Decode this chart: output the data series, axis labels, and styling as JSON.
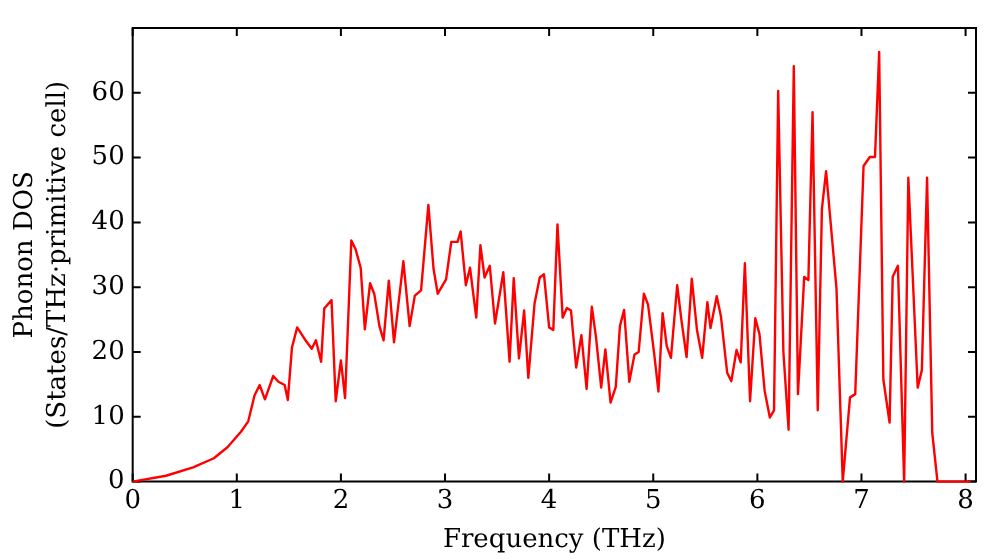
{
  "chart_data": {
    "type": "line",
    "xlabel": "Frequency (THz)",
    "ylabel": "Phonon DOS\n(States/THz·primitive cell)",
    "xlim": [
      0,
      8.1
    ],
    "ylim": [
      0,
      70
    ],
    "xticks": [
      0,
      1,
      2,
      3,
      4,
      5,
      6,
      7,
      8
    ],
    "yticks": [
      0,
      10,
      20,
      30,
      40,
      50,
      60
    ],
    "grid": false,
    "legend": false,
    "marker": "none",
    "line_style": "solid",
    "series": [
      {
        "color": "#ff0000",
        "x": [
          0,
          0.32,
          0.58,
          0.78,
          0.91,
          1.04,
          1.11,
          1.17,
          1.22,
          1.27,
          1.35,
          1.4,
          1.46,
          1.49,
          1.53,
          1.58,
          1.66,
          1.72,
          1.76,
          1.81,
          1.84,
          1.91,
          1.95,
          2.0,
          2.04,
          2.1,
          2.14,
          2.19,
          2.23,
          2.28,
          2.32,
          2.37,
          2.41,
          2.46,
          2.51,
          2.6,
          2.66,
          2.71,
          2.77,
          2.84,
          2.89,
          2.93,
          3.01,
          3.06,
          3.12,
          3.15,
          3.2,
          3.24,
          3.3,
          3.34,
          3.38,
          3.43,
          3.48,
          3.56,
          3.62,
          3.66,
          3.71,
          3.76,
          3.8,
          3.86,
          3.91,
          3.95,
          4.0,
          4.04,
          4.08,
          4.13,
          4.17,
          4.21,
          4.26,
          4.31,
          4.36,
          4.41,
          4.45,
          4.5,
          4.54,
          4.59,
          4.64,
          4.68,
          4.72,
          4.77,
          4.82,
          4.86,
          4.91,
          4.95,
          5.01,
          5.05,
          5.09,
          5.13,
          5.17,
          5.23,
          5.27,
          5.32,
          5.37,
          5.42,
          5.47,
          5.52,
          5.55,
          5.61,
          5.65,
          5.71,
          5.75,
          5.8,
          5.84,
          5.88,
          5.93,
          5.98,
          6.02,
          6.07,
          6.12,
          6.16,
          6.2,
          6.25,
          6.3,
          6.35,
          6.39,
          6.45,
          6.49,
          6.53,
          6.58,
          6.62,
          6.66,
          6.76,
          6.82,
          6.89,
          6.94,
          7.02,
          7.08,
          7.13,
          7.17,
          7.21,
          7.27,
          7.3,
          7.35,
          7.41,
          7.45,
          7.54,
          7.58,
          7.63,
          7.68,
          7.73,
          8.05
        ],
        "values": [
          0,
          0.9,
          2.2,
          3.6,
          5.3,
          7.7,
          9.3,
          13.3,
          14.9,
          12.7,
          16.3,
          15.4,
          14.9,
          12.6,
          20.7,
          23.8,
          21.8,
          20.5,
          21.8,
          18.5,
          26.7,
          28,
          12.4,
          18.7,
          12.9,
          37.2,
          35.9,
          33,
          23.5,
          30.6,
          29,
          24,
          21.8,
          31,
          21.5,
          34,
          24,
          28.7,
          29.5,
          42.7,
          32.8,
          29,
          31.2,
          37,
          37,
          38.6,
          30.3,
          33,
          25.3,
          36.5,
          31.5,
          33.3,
          24.4,
          32.3,
          18.5,
          31.4,
          19,
          26.4,
          16,
          27.5,
          31.5,
          32,
          23.8,
          23.4,
          39.7,
          25.3,
          26.8,
          26.4,
          17.6,
          22.6,
          14.3,
          27,
          22.3,
          14.5,
          20.4,
          12.2,
          14.6,
          24,
          26.5,
          15.4,
          19.6,
          20,
          29,
          27.3,
          19.6,
          13.9,
          26,
          20.9,
          19.1,
          30.3,
          25,
          19.2,
          31.3,
          23.4,
          19.1,
          27.7,
          23.7,
          28.6,
          25.5,
          16.8,
          15.5,
          20.3,
          18.4,
          33.7,
          12.4,
          25.2,
          22.8,
          14,
          9.9,
          11,
          60.3,
          20,
          8,
          64.1,
          13.5,
          31.6,
          31.1,
          57,
          11,
          42.1,
          47.9,
          29.8,
          0,
          13,
          13.5,
          48.7,
          50.1,
          50.1,
          66.3,
          15.8,
          9.1,
          31.6,
          33.3,
          0,
          46.9,
          14.5,
          17.2,
          46.9,
          7.5,
          0,
          0
        ]
      }
    ]
  }
}
